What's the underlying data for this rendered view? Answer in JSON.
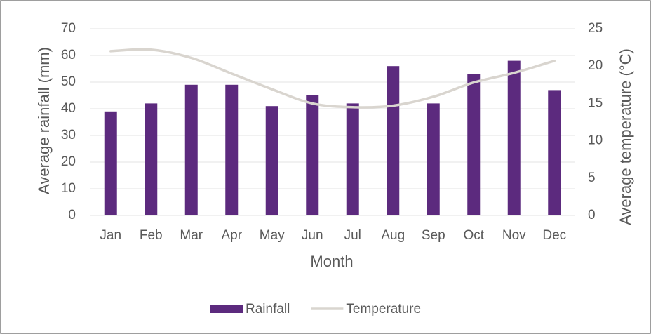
{
  "chart_data": {
    "type": "bar_line",
    "categories": [
      "Jan",
      "Feb",
      "Mar",
      "Apr",
      "May",
      "Jun",
      "Jul",
      "Aug",
      "Sep",
      "Oct",
      "Nov",
      "Dec"
    ],
    "series": [
      {
        "name": "Rainfall",
        "type": "bar",
        "color": "#5c2a7e",
        "values": [
          39,
          42,
          49,
          49,
          41,
          45,
          42,
          56,
          42,
          53,
          58,
          47
        ]
      },
      {
        "name": "Temperature",
        "type": "line",
        "axis": "y2",
        "color": "#d9d5cf",
        "values": [
          22.0,
          22.2,
          21.1,
          19.0,
          16.9,
          15.0,
          14.5,
          14.7,
          15.9,
          17.8,
          19.1,
          20.7
        ]
      }
    ],
    "xlabel": "Month",
    "ylabel": "Average rainfall (mm)",
    "y2label": "Average temperature (°C)",
    "ylim": [
      0,
      70
    ],
    "yticks": [
      0,
      10,
      20,
      30,
      40,
      50,
      60,
      70
    ],
    "y2lim": [
      0,
      25
    ],
    "y2ticks": [
      0,
      5,
      10,
      15,
      20,
      25
    ],
    "grid": true,
    "legend": "bottom"
  }
}
